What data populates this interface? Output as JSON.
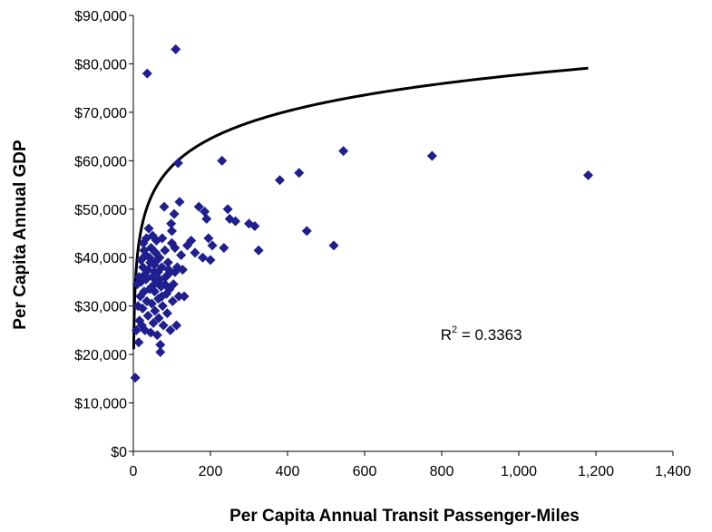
{
  "chart_data": {
    "type": "scatter",
    "title": "",
    "xlabel": "Per Capita Annual Transit Passenger-Miles",
    "ylabel": "Per Capita Annual GDP",
    "xlim": [
      0,
      1400
    ],
    "ylim": [
      0,
      90000
    ],
    "x_ticks": [
      0,
      200,
      400,
      600,
      800,
      1000,
      1200,
      1400
    ],
    "x_tick_labels": [
      "0",
      "200",
      "400",
      "600",
      "800",
      "1,000",
      "1,200",
      "1,400"
    ],
    "y_ticks": [
      0,
      10000,
      20000,
      30000,
      40000,
      50000,
      60000,
      70000,
      80000,
      90000
    ],
    "y_tick_labels": [
      "$0",
      "$10,000",
      "$20,000",
      "$30,000",
      "$40,000",
      "$50,000",
      "$60,000",
      "$70,000",
      "$80,000",
      "$90,000"
    ],
    "grid": false,
    "legend": "none",
    "marker_color": "#1f1f8f",
    "trendline_color": "#000000",
    "annotation": {
      "text_base": "R",
      "text_sup": "2",
      "text_rest": " = 0.3363",
      "x": 950,
      "y": 23000
    },
    "trendline": {
      "type": "logarithmic",
      "a": 8200,
      "b": -900,
      "x_min": 1,
      "x_max": 1180
    },
    "series": [
      {
        "points": [
          [
            5,
            15200
          ],
          [
            8,
            25000
          ],
          [
            10,
            34500
          ],
          [
            12,
            30000
          ],
          [
            14,
            22500
          ],
          [
            16,
            27000
          ],
          [
            18,
            32000
          ],
          [
            20,
            35000
          ],
          [
            22,
            26000
          ],
          [
            24,
            29500
          ],
          [
            25,
            38000
          ],
          [
            26,
            43000
          ],
          [
            28,
            33000
          ],
          [
            30,
            25000
          ],
          [
            30,
            36500
          ],
          [
            32,
            40500
          ],
          [
            34,
            44000
          ],
          [
            35,
            31000
          ],
          [
            36,
            78000
          ],
          [
            38,
            28000
          ],
          [
            38,
            37500
          ],
          [
            40,
            46000
          ],
          [
            42,
            33500
          ],
          [
            44,
            39000
          ],
          [
            45,
            24500
          ],
          [
            46,
            42000
          ],
          [
            48,
            30500
          ],
          [
            50,
            36000
          ],
          [
            50,
            44500
          ],
          [
            52,
            26500
          ],
          [
            54,
            38500
          ],
          [
            55,
            33000
          ],
          [
            56,
            29000
          ],
          [
            58,
            41000
          ],
          [
            60,
            35000
          ],
          [
            60,
            43500
          ],
          [
            62,
            24000
          ],
          [
            64,
            37000
          ],
          [
            65,
            31500
          ],
          [
            66,
            27500
          ],
          [
            68,
            40000
          ],
          [
            70,
            22000
          ],
          [
            70,
            20500
          ],
          [
            72,
            34000
          ],
          [
            74,
            38000
          ],
          [
            75,
            44000
          ],
          [
            76,
            30000
          ],
          [
            78,
            26000
          ],
          [
            80,
            50500
          ],
          [
            82,
            41500
          ],
          [
            84,
            36000
          ],
          [
            86,
            32500
          ],
          [
            88,
            28500
          ],
          [
            90,
            39000
          ],
          [
            92,
            37500
          ],
          [
            94,
            33500
          ],
          [
            96,
            25000
          ],
          [
            98,
            47000
          ],
          [
            100,
            45500
          ],
          [
            102,
            31000
          ],
          [
            104,
            34500
          ],
          [
            106,
            49000
          ],
          [
            108,
            42000
          ],
          [
            110,
            83000
          ],
          [
            112,
            26000
          ],
          [
            114,
            38000
          ],
          [
            116,
            59500
          ],
          [
            118,
            32000
          ],
          [
            120,
            51500
          ],
          [
            124,
            40500
          ],
          [
            128,
            37500
          ],
          [
            132,
            32000
          ],
          [
            140,
            42500
          ],
          [
            150,
            43500
          ],
          [
            160,
            41000
          ],
          [
            170,
            50500
          ],
          [
            180,
            40000
          ],
          [
            185,
            49500
          ],
          [
            190,
            48000
          ],
          [
            195,
            44000
          ],
          [
            200,
            39500
          ],
          [
            205,
            42500
          ],
          [
            230,
            60000
          ],
          [
            235,
            42000
          ],
          [
            245,
            50000
          ],
          [
            250,
            48000
          ],
          [
            265,
            47500
          ],
          [
            300,
            47000
          ],
          [
            315,
            46500
          ],
          [
            325,
            41500
          ],
          [
            380,
            56000
          ],
          [
            430,
            57500
          ],
          [
            450,
            45500
          ],
          [
            520,
            42500
          ],
          [
            545,
            62000
          ],
          [
            775,
            61000
          ],
          [
            1180,
            57000
          ],
          [
            15,
            36000
          ],
          [
            20,
            39500
          ],
          [
            28,
            41500
          ],
          [
            33,
            35500
          ],
          [
            42,
            40000
          ],
          [
            48,
            34000
          ],
          [
            55,
            37000
          ],
          [
            62,
            39500
          ],
          [
            68,
            35500
          ],
          [
            74,
            32000
          ],
          [
            82,
            34500
          ],
          [
            90,
            36500
          ],
          [
            100,
            43000
          ],
          [
            108,
            37000
          ]
        ]
      }
    ]
  }
}
